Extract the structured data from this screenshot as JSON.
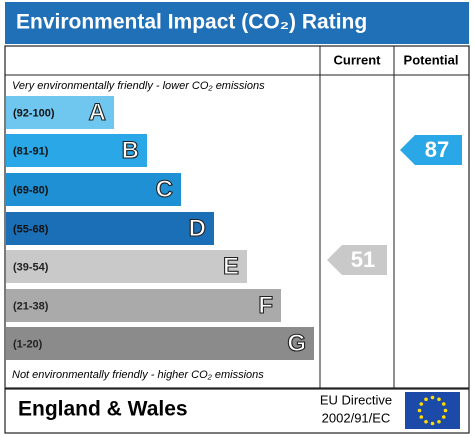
{
  "title": "Environmental Impact (CO₂) Rating",
  "columns": [
    "Current",
    "Potential"
  ],
  "top_note": "Very environmentally friendly - lower CO₂ emissions",
  "bottom_note": "Not environmentally friendly - higher CO₂ emissions",
  "bands": [
    {
      "range": "(92-100)",
      "letter": "A",
      "color": "#6fc7f0"
    },
    {
      "range": "(81-91)",
      "letter": "B",
      "color": "#2aa7e6"
    },
    {
      "range": "(69-80)",
      "letter": "C",
      "color": "#1e90d3"
    },
    {
      "range": "(55-68)",
      "letter": "D",
      "color": "#1a6fb6"
    },
    {
      "range": "(39-54)",
      "letter": "E",
      "color": "#c9c9c9"
    },
    {
      "range": "(21-38)",
      "letter": "F",
      "color": "#aaaaaa"
    },
    {
      "range": "(1-20)",
      "letter": "G",
      "color": "#8b8b8b"
    }
  ],
  "current": {
    "value": 51,
    "color": "#c9c9c9"
  },
  "potential": {
    "value": 87,
    "color": "#2aa7e6"
  },
  "footer": {
    "region": "England & Wales",
    "directive_line1": "EU Directive",
    "directive_line2": "2002/91/EC"
  }
}
